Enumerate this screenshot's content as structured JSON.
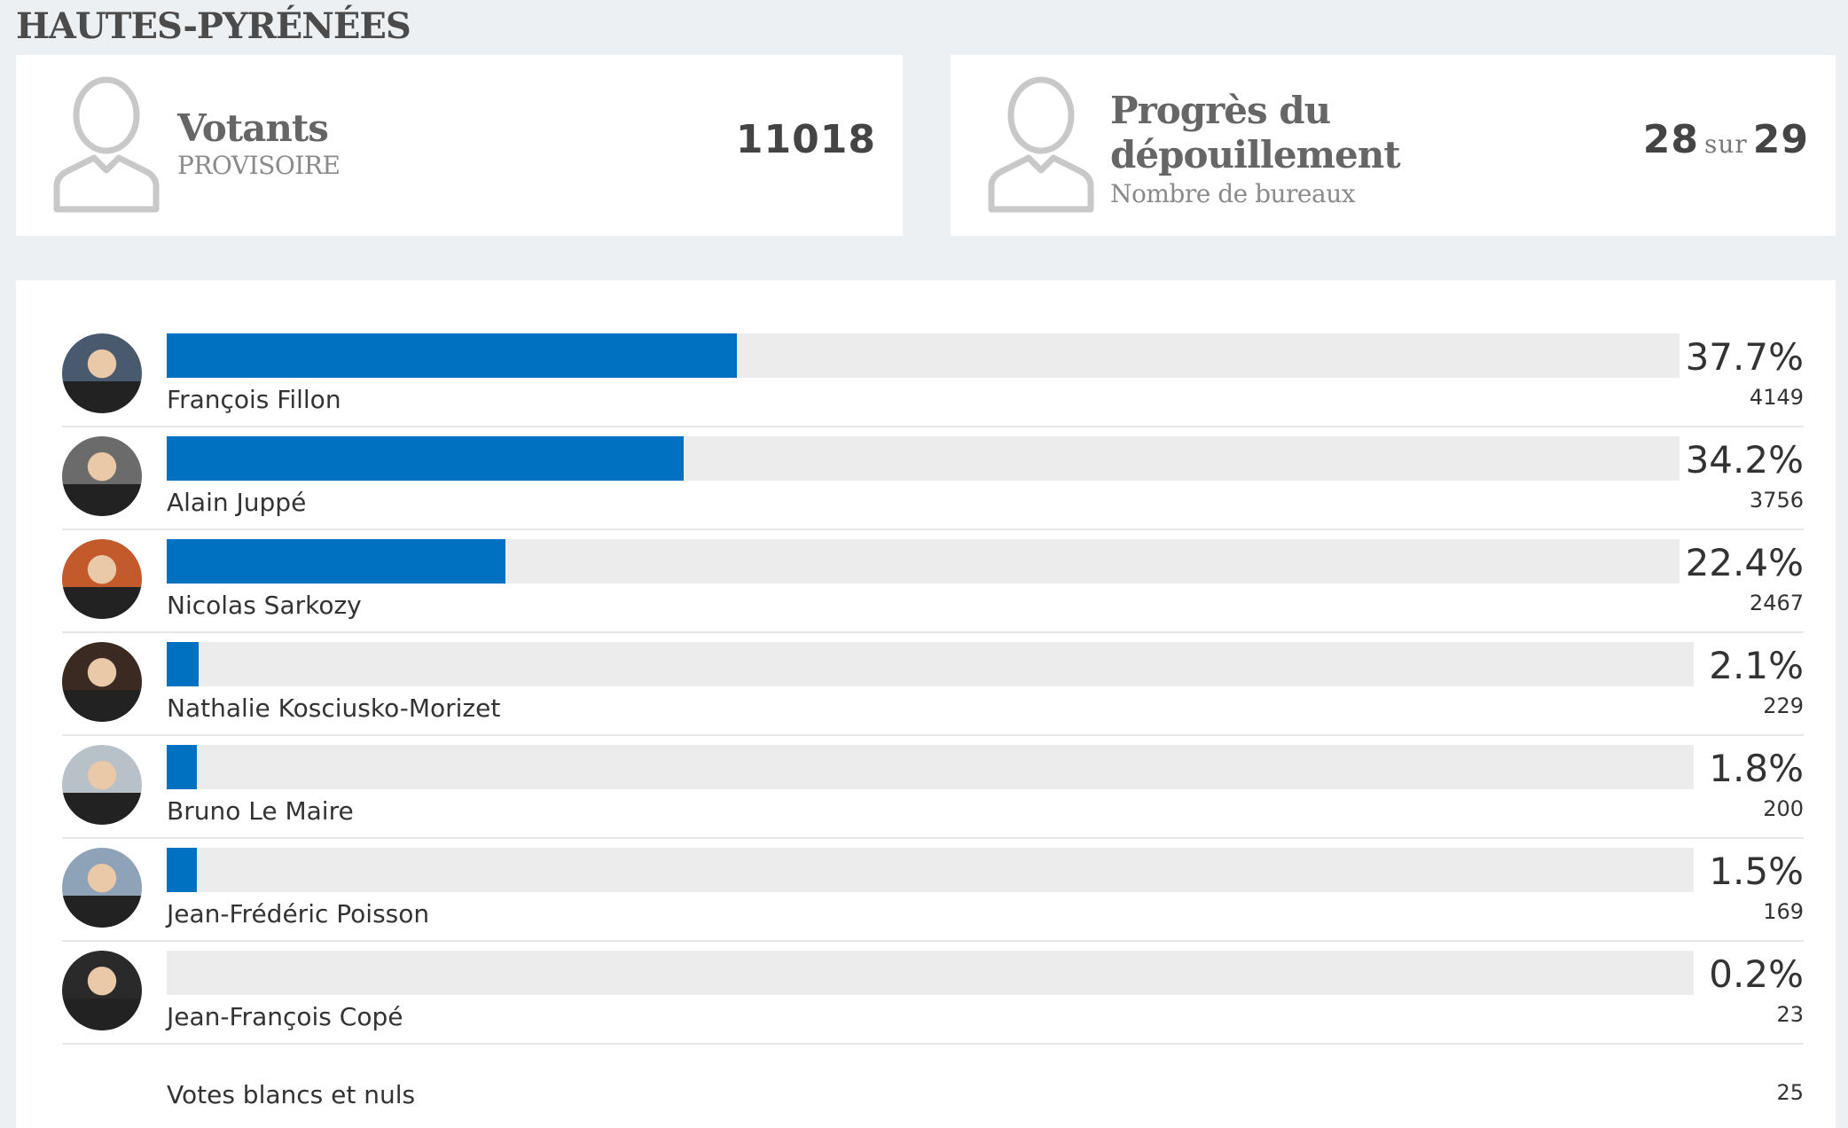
{
  "header": {
    "title": "HAUTES-PYRÉNÉES"
  },
  "votants": {
    "title": "Votants",
    "subtitle": "PROVISOIRE",
    "value": "11018",
    "icon": "person-icon"
  },
  "progress": {
    "title_line1": "Progrès du",
    "title_line2": "dépouillement",
    "subtitle": "Nombre de bureaux",
    "counted": "28",
    "sep": "sur",
    "total": "29",
    "icon": "person-icon"
  },
  "colors": {
    "bar": "#0070c0",
    "track": "#ececec",
    "background": "#edf0f3"
  },
  "chart_data": {
    "type": "bar",
    "orientation": "horizontal",
    "xlim": [
      0,
      100
    ],
    "grid": false,
    "categories": [
      "François Fillon",
      "Alain Juppé",
      "Nicolas Sarkozy",
      "Nathalie Kosciusko-Morizet",
      "Bruno Le Maire",
      "Jean-Frédéric Poisson",
      "Jean-François Copé"
    ],
    "values": [
      37.7,
      34.2,
      22.4,
      2.1,
      1.8,
      1.5,
      0.2
    ],
    "value_labels": [
      "37.7%",
      "34.2%",
      "22.4%",
      "2.1%",
      "1.8%",
      "1.5%",
      "0.2%"
    ],
    "votes": [
      "4149",
      "3756",
      "2467",
      "229",
      "200",
      "169",
      "23"
    ],
    "avatar_colors": [
      "#4a5a6e",
      "#6b6b6b",
      "#c25a2c",
      "#3a2a22",
      "#b8c0c8",
      "#8fa3b8",
      "#2a2a2a"
    ]
  },
  "blank": {
    "label": "Votes blancs et nuls",
    "value": "25"
  }
}
